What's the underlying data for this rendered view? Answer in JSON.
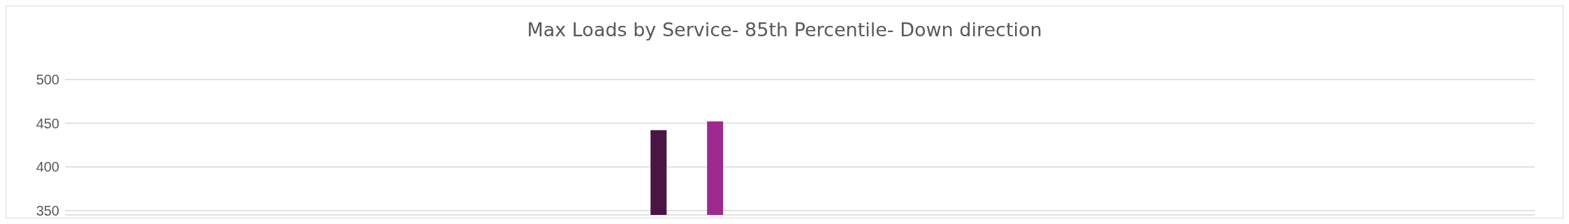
{
  "chart_data": {
    "type": "bar",
    "title": "Max Loads by Service- 85th Percentile- Down direction",
    "categories": [
      null,
      null,
      null,
      null,
      null,
      null,
      null,
      null,
      null,
      null,
      null,
      null,
      null,
      null,
      null,
      null,
      null,
      null,
      null,
      null,
      null,
      null,
      null,
      null,
      null,
      null
    ],
    "values": [
      null,
      null,
      null,
      null,
      null,
      null,
      null,
      null,
      null,
      null,
      442,
      452,
      null,
      null,
      null,
      null,
      null,
      null,
      null,
      null,
      null,
      null,
      null,
      null,
      null,
      null
    ],
    "colors": [
      "#4a1545",
      "#4a1545",
      "#4a1545",
      "#4a1545",
      "#4a1545",
      "#4a1545",
      "#4a1545",
      "#4a1545",
      "#4a1545",
      "#4a1545",
      "#4a1545",
      "#9e2a8f",
      "#9e2a8f",
      "#9e2a8f",
      "#9e2a8f",
      "#9e2a8f",
      "#9e2a8f",
      "#9e2a8f",
      "#9e2a8f",
      "#9e2a8f",
      "#9e2a8f",
      "#9e2a8f",
      "#9e2a8f",
      "#9e2a8f",
      "#9e2a8f",
      "#9e2a8f"
    ],
    "ylim": [
      345,
      500
    ],
    "yticks": [
      350,
      400,
      450,
      500
    ],
    "grid": "y",
    "tick_labels": "y"
  }
}
